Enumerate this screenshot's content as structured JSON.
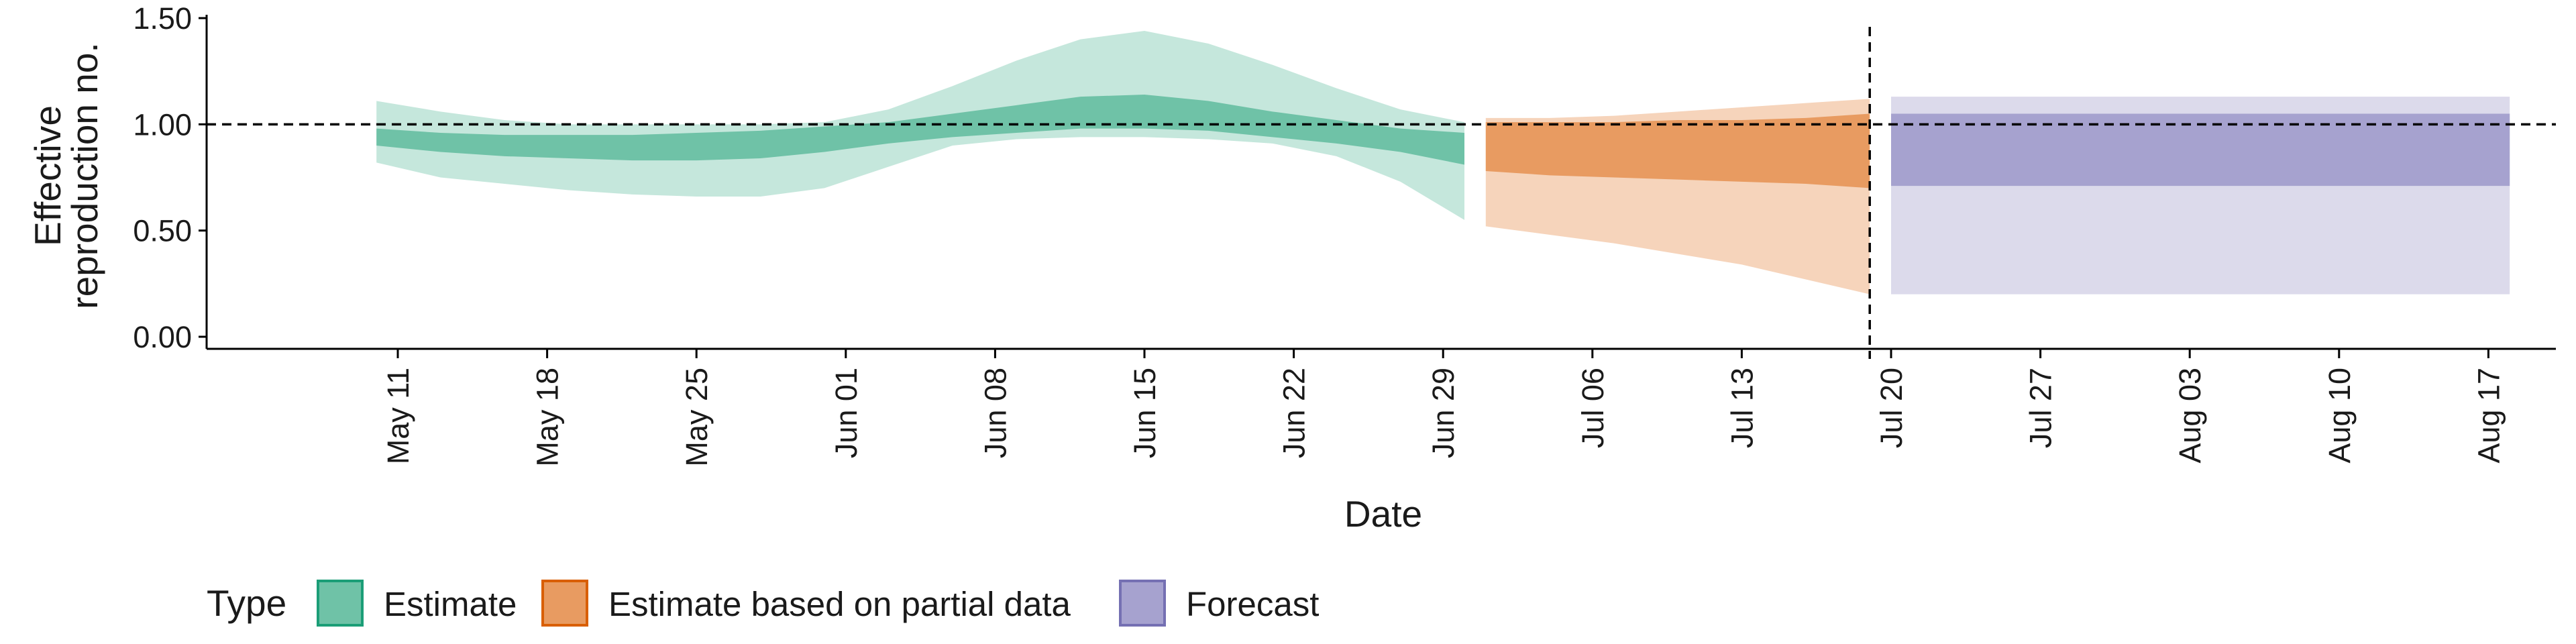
{
  "chart_data": {
    "type": "area",
    "xlabel": "Date",
    "ylabel_lines": [
      "Effective",
      "reproduction no."
    ],
    "ylim": [
      0,
      1.5
    ],
    "yticks": [
      {
        "value": 0.0,
        "label": "0.00"
      },
      {
        "value": 0.5,
        "label": "0.50"
      },
      {
        "value": 1.0,
        "label": "1.00"
      },
      {
        "value": 1.5,
        "label": "1.50"
      }
    ],
    "x_start_date": "2020-05-01",
    "xlim": [
      "2020-05-01",
      "2020-08-22"
    ],
    "xticks": [
      {
        "date": "2020-05-11",
        "label": "May 11"
      },
      {
        "date": "2020-05-18",
        "label": "May 18"
      },
      {
        "date": "2020-05-25",
        "label": "May 25"
      },
      {
        "date": "2020-06-01",
        "label": "Jun 01"
      },
      {
        "date": "2020-06-08",
        "label": "Jun 08"
      },
      {
        "date": "2020-06-15",
        "label": "Jun 15"
      },
      {
        "date": "2020-06-22",
        "label": "Jun 22"
      },
      {
        "date": "2020-06-29",
        "label": "Jun 29"
      },
      {
        "date": "2020-07-06",
        "label": "Jul 06"
      },
      {
        "date": "2020-07-13",
        "label": "Jul 13"
      },
      {
        "date": "2020-07-20",
        "label": "Jul 20"
      },
      {
        "date": "2020-07-27",
        "label": "Jul 27"
      },
      {
        "date": "2020-08-03",
        "label": "Aug 03"
      },
      {
        "date": "2020-08-10",
        "label": "Aug 10"
      },
      {
        "date": "2020-08-17",
        "label": "Aug 17"
      }
    ],
    "hline": {
      "y": 1.0,
      "style": "dashed"
    },
    "vline": {
      "date": "2020-07-19",
      "style": "dashed"
    },
    "series": [
      {
        "name": "Estimate",
        "inner_color": "#1b9e77",
        "colors": {
          "outer": "#c5e7dc",
          "inner": "#6fc2a7",
          "border": "#1b9e77"
        },
        "x": [
          "2020-05-10",
          "2020-05-13",
          "2020-05-16",
          "2020-05-19",
          "2020-05-22",
          "2020-05-25",
          "2020-05-28",
          "2020-05-31",
          "2020-06-03",
          "2020-06-06",
          "2020-06-09",
          "2020-06-12",
          "2020-06-15",
          "2020-06-18",
          "2020-06-21",
          "2020-06-24",
          "2020-06-27",
          "2020-06-30"
        ],
        "lower90": [
          0.82,
          0.75,
          0.72,
          0.69,
          0.67,
          0.66,
          0.66,
          0.7,
          0.8,
          0.9,
          0.93,
          0.94,
          0.94,
          0.93,
          0.91,
          0.85,
          0.73,
          0.55
        ],
        "upper90": [
          1.11,
          1.06,
          1.02,
          1.0,
          1.0,
          1.0,
          1.0,
          1.01,
          1.07,
          1.18,
          1.3,
          1.4,
          1.44,
          1.38,
          1.28,
          1.17,
          1.07,
          1.01
        ],
        "lower50": [
          0.9,
          0.87,
          0.85,
          0.84,
          0.83,
          0.83,
          0.84,
          0.87,
          0.91,
          0.94,
          0.96,
          0.98,
          0.98,
          0.97,
          0.94,
          0.91,
          0.87,
          0.81
        ],
        "upper50": [
          0.98,
          0.96,
          0.95,
          0.95,
          0.95,
          0.96,
          0.97,
          0.99,
          1.01,
          1.05,
          1.09,
          1.13,
          1.14,
          1.11,
          1.06,
          1.02,
          0.98,
          0.96
        ]
      },
      {
        "name": "Estimate based on partial data",
        "inner_color": "#d95f02",
        "colors": {
          "outer": "#f6d4bb",
          "inner": "#e89b61",
          "border": "#d95f02"
        },
        "x": [
          "2020-07-01",
          "2020-07-04",
          "2020-07-07",
          "2020-07-10",
          "2020-07-13",
          "2020-07-16",
          "2020-07-19"
        ],
        "lower90": [
          0.52,
          0.48,
          0.44,
          0.39,
          0.34,
          0.27,
          0.2
        ],
        "upper90": [
          1.03,
          1.03,
          1.04,
          1.06,
          1.08,
          1.1,
          1.12
        ],
        "lower50": [
          0.78,
          0.76,
          0.75,
          0.74,
          0.73,
          0.72,
          0.7
        ],
        "upper50": [
          1.01,
          1.01,
          1.01,
          1.02,
          1.02,
          1.03,
          1.05
        ]
      },
      {
        "name": "Forecast",
        "inner_color": "#7570b3",
        "colors": {
          "outer": "#dcdaeb",
          "inner": "#a6a2cf",
          "border": "#7570b3"
        },
        "x": [
          "2020-07-20",
          "2020-08-18"
        ],
        "lower90": [
          0.2,
          0.2
        ],
        "upper90": [
          1.13,
          1.13
        ],
        "lower50": [
          0.71,
          0.71
        ],
        "upper50": [
          1.05,
          1.05
        ]
      }
    ],
    "legend": {
      "title": "Type",
      "position": "bottom",
      "items": [
        "Estimate",
        "Estimate based on partial data",
        "Forecast"
      ]
    }
  }
}
